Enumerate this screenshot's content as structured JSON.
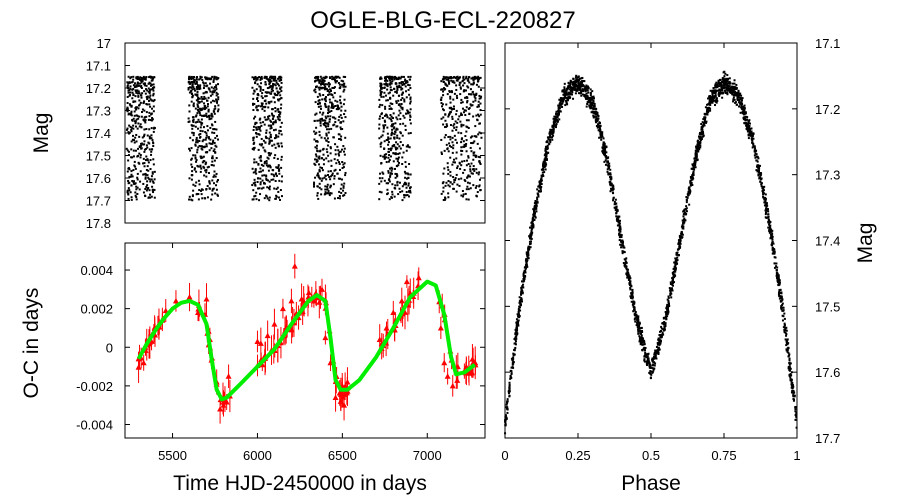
{
  "figure": {
    "title": "OGLE-BLG-ECL-220827",
    "colors": {
      "points": "#000000",
      "oc_points": "#ff0000",
      "model": "#00ee00"
    }
  },
  "chart_data": [
    {
      "id": "light_curve",
      "type": "scatter",
      "title": "",
      "xlabel": "",
      "ylabel": "Mag",
      "xlim": [
        5280,
        7320
      ],
      "ylim": [
        17.8,
        17.0
      ],
      "y_inverted": true,
      "yticks": [
        "17",
        "17.1",
        "17.2",
        "17.3",
        "17.4",
        "17.5",
        "17.6",
        "17.7",
        "17.8"
      ],
      "series": [
        {
          "name": "photometry",
          "description_of_seasons": "six observing seasons",
          "season_spans": [
            [
              5290,
              5450
            ],
            [
              5640,
              5810
            ],
            [
              6000,
              6170
            ],
            [
              6350,
              6530
            ],
            [
              6720,
              6900
            ],
            [
              7070,
              7300
            ]
          ],
          "mag_range": [
            17.15,
            17.7
          ]
        }
      ]
    },
    {
      "id": "oc_diagram",
      "type": "scatter",
      "xlabel": "Time HJD-2450000 in days",
      "ylabel": "O-C in days",
      "xlim": [
        5220,
        7340
      ],
      "ylim": [
        -0.0047,
        0.0054
      ],
      "xticks": [
        "5500",
        "6000",
        "6500",
        "7000"
      ],
      "yticks": [
        "-0.004",
        "-0.002",
        "0",
        "0.002",
        "0.004"
      ],
      "series": [
        {
          "name": "O-C",
          "marker": "triangle",
          "points": [
            [
              5300,
              -0.0006
            ],
            [
              5330,
              -0.0008
            ],
            [
              5360,
              0.0003
            ],
            [
              5390,
              0.0007
            ],
            [
              5420,
              0.0012
            ],
            [
              5440,
              0.0014
            ],
            [
              5460,
              0.0019
            ],
            [
              5520,
              0.0024
            ],
            [
              5600,
              0.0026
            ],
            [
              5650,
              0.0018
            ],
            [
              5700,
              0.0025
            ],
            [
              5720,
              0.0004
            ],
            [
              5760,
              -0.0018
            ],
            [
              5780,
              -0.0032
            ],
            [
              5800,
              -0.003
            ],
            [
              5830,
              -0.0015
            ],
            [
              6000,
              0.0003
            ],
            [
              6020,
              0.0002
            ],
            [
              6060,
              0.0006
            ],
            [
              6100,
              0.0012
            ],
            [
              6150,
              0.002
            ],
            [
              6200,
              0.0024
            ],
            [
              6220,
              0.0042
            ],
            [
              6260,
              0.0025
            ],
            [
              6300,
              0.0026
            ],
            [
              6320,
              0.0026
            ],
            [
              6380,
              0.003
            ],
            [
              6400,
              0.0005
            ],
            [
              6430,
              -0.0008
            ],
            [
              6460,
              -0.0026
            ],
            [
              6490,
              -0.0028
            ],
            [
              6500,
              -0.002
            ],
            [
              6510,
              -0.003
            ],
            [
              6530,
              -0.0018
            ],
            [
              6720,
              0.0004
            ],
            [
              6760,
              0.001
            ],
            [
              6800,
              0.0018
            ],
            [
              6850,
              0.0024
            ],
            [
              6880,
              0.0034
            ],
            [
              6900,
              0.0028
            ],
            [
              6920,
              0.0028
            ],
            [
              6950,
              0.0036
            ],
            [
              7080,
              0.001
            ],
            [
              7100,
              -0.0008
            ],
            [
              7120,
              -0.0015
            ],
            [
              7150,
              -0.002
            ],
            [
              7180,
              -0.001
            ],
            [
              7230,
              -0.001
            ],
            [
              7270,
              -0.0008
            ]
          ]
        },
        {
          "name": "model",
          "type": "line",
          "points": [
            [
              5300,
              -0.0006
            ],
            [
              5350,
              0.0002
            ],
            [
              5400,
              0.0009
            ],
            [
              5450,
              0.0015
            ],
            [
              5500,
              0.002
            ],
            [
              5550,
              0.0023
            ],
            [
              5600,
              0.0024
            ],
            [
              5650,
              0.0022
            ],
            [
              5700,
              0.0012
            ],
            [
              5730,
              -0.0006
            ],
            [
              5760,
              -0.0022
            ],
            [
              5790,
              -0.0027
            ],
            [
              5820,
              -0.0026
            ],
            [
              5900,
              -0.0019
            ],
            [
              6000,
              -0.001
            ],
            [
              6100,
              -0.0001
            ],
            [
              6200,
              0.0012
            ],
            [
              6300,
              0.0024
            ],
            [
              6350,
              0.0027
            ],
            [
              6400,
              0.0024
            ],
            [
              6430,
              0.0005
            ],
            [
              6460,
              -0.0017
            ],
            [
              6490,
              -0.0022
            ],
            [
              6530,
              -0.0022
            ],
            [
              6600,
              -0.0017
            ],
            [
              6700,
              -0.0005
            ],
            [
              6800,
              0.001
            ],
            [
              6900,
              0.0026
            ],
            [
              7000,
              0.0034
            ],
            [
              7050,
              0.0032
            ],
            [
              7100,
              0.0017
            ],
            [
              7140,
              -0.0005
            ],
            [
              7170,
              -0.0014
            ],
            [
              7220,
              -0.0013
            ],
            [
              7280,
              -0.0009
            ]
          ]
        }
      ]
    },
    {
      "id": "phased_curve",
      "type": "scatter",
      "xlabel": "Phase",
      "ylabel": "Mag",
      "xlim": [
        0,
        1
      ],
      "ylim": [
        17.7,
        17.1
      ],
      "y_inverted": true,
      "xticks": [
        "0",
        "0.25",
        "0.5",
        "0.75",
        "1"
      ],
      "yticks": [
        "17.1",
        "17.2",
        "17.3",
        "17.4",
        "17.5",
        "17.6",
        "17.7"
      ],
      "series": [
        {
          "name": "phased photometry",
          "shape_points": [
            [
              0.0,
              17.68
            ],
            [
              0.05,
              17.5
            ],
            [
              0.1,
              17.36
            ],
            [
              0.15,
              17.25
            ],
            [
              0.2,
              17.18
            ],
            [
              0.25,
              17.16
            ],
            [
              0.3,
              17.19
            ],
            [
              0.35,
              17.28
            ],
            [
              0.4,
              17.4
            ],
            [
              0.45,
              17.52
            ],
            [
              0.5,
              17.6
            ],
            [
              0.55,
              17.52
            ],
            [
              0.6,
              17.4
            ],
            [
              0.65,
              17.28
            ],
            [
              0.7,
              17.19
            ],
            [
              0.75,
              17.16
            ],
            [
              0.8,
              17.18
            ],
            [
              0.85,
              17.25
            ],
            [
              0.9,
              17.36
            ],
            [
              0.95,
              17.5
            ],
            [
              1.0,
              17.68
            ]
          ]
        }
      ]
    }
  ]
}
